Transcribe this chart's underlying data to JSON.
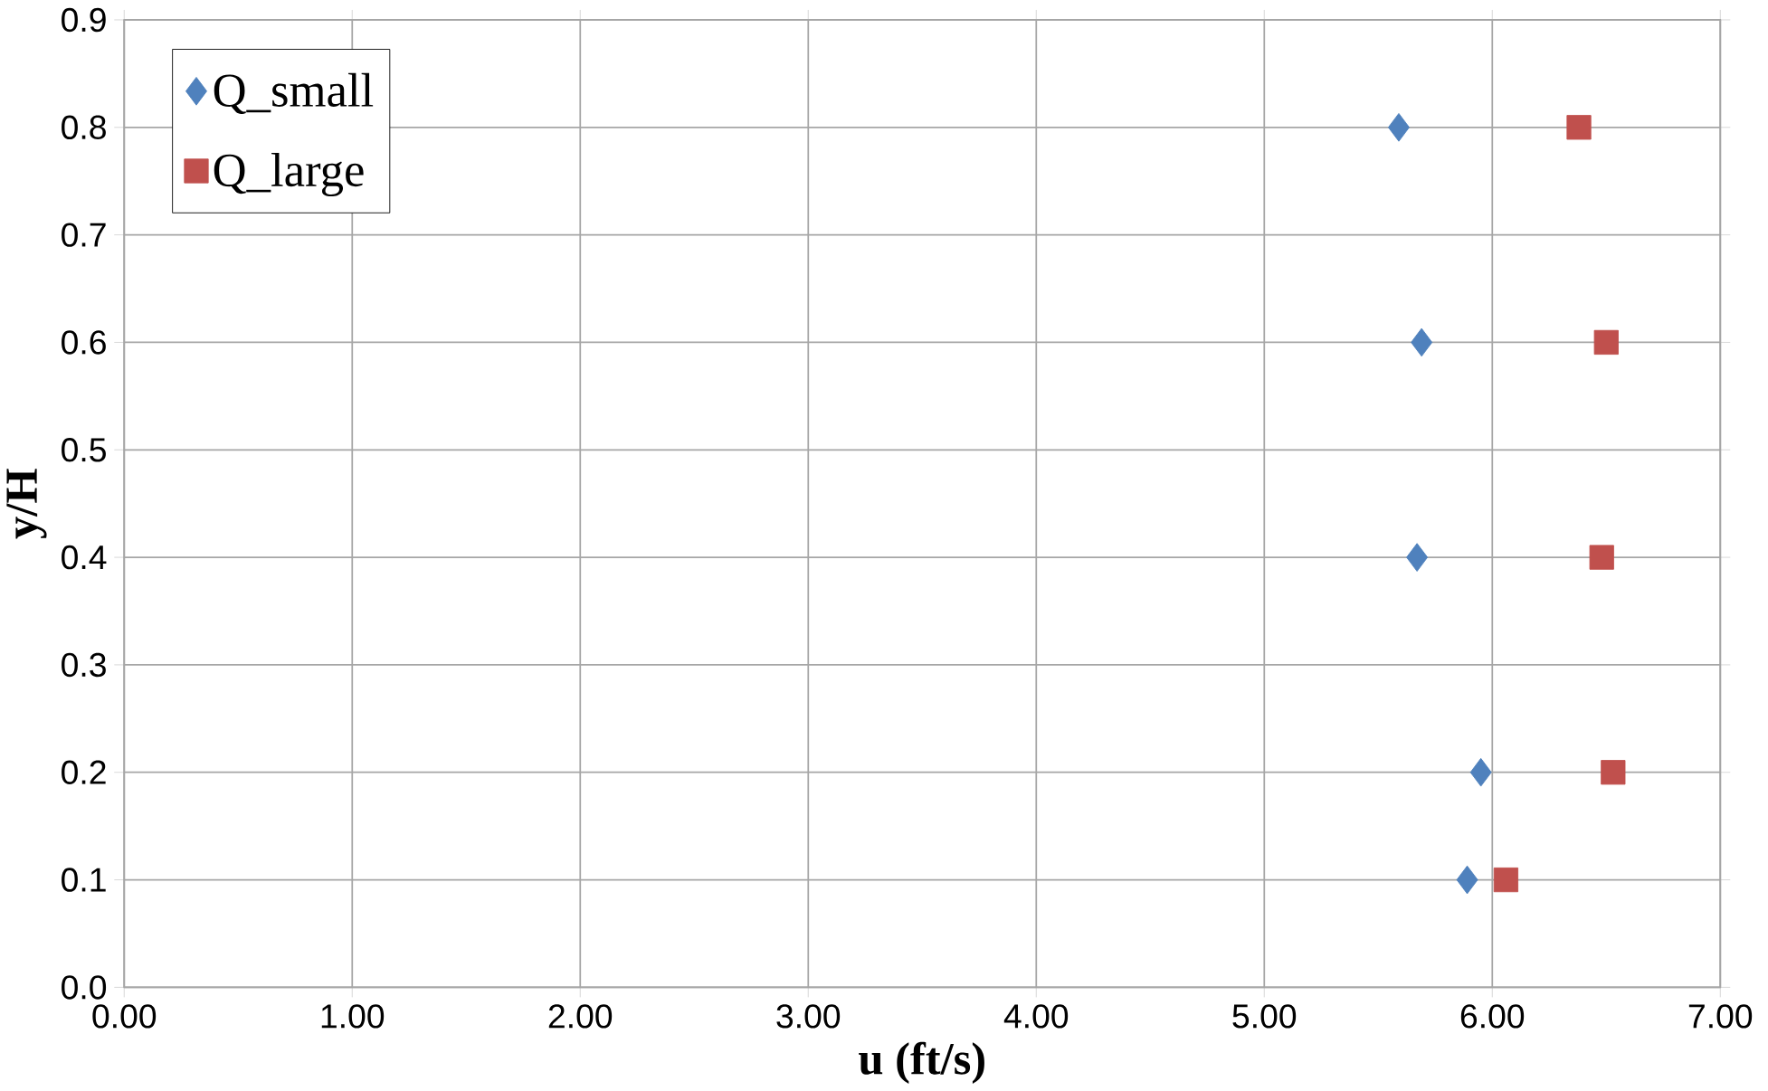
{
  "chart_data": {
    "type": "scatter",
    "xlabel": "u (ft/s)",
    "ylabel": "y/H",
    "series": [
      {
        "name": "Q_small",
        "color": "#4f81bd",
        "marker": "diamond",
        "x": [
          5.59,
          5.69,
          5.67,
          5.95,
          5.89
        ],
        "values": [
          0.8,
          0.6,
          0.4,
          0.2,
          0.1
        ]
      },
      {
        "name": "Q_large",
        "color": "#c0504d",
        "marker": "square",
        "x": [
          6.38,
          6.5,
          6.48,
          6.53,
          6.06
        ],
        "values": [
          0.8,
          0.6,
          0.4,
          0.2,
          0.1
        ]
      }
    ],
    "xlim": [
      0,
      7
    ],
    "ylim": [
      0,
      0.9
    ],
    "xticks": [
      {
        "value": 0,
        "label": "0.00"
      },
      {
        "value": 1,
        "label": "1.00"
      },
      {
        "value": 2,
        "label": "2.00"
      },
      {
        "value": 3,
        "label": "3.00"
      },
      {
        "value": 4,
        "label": "4.00"
      },
      {
        "value": 5,
        "label": "5.00"
      },
      {
        "value": 6,
        "label": "6.00"
      },
      {
        "value": 7,
        "label": "7.00"
      }
    ],
    "yticks": [
      {
        "value": 0,
        "label": "0.0"
      },
      {
        "value": 0.1,
        "label": "0.1"
      },
      {
        "value": 0.2,
        "label": "0.2"
      },
      {
        "value": 0.3,
        "label": "0.3"
      },
      {
        "value": 0.4,
        "label": "0.4"
      },
      {
        "value": 0.5,
        "label": "0.5"
      },
      {
        "value": 0.6,
        "label": "0.6"
      },
      {
        "value": 0.7,
        "label": "0.7"
      },
      {
        "value": 0.8,
        "label": "0.8"
      },
      {
        "value": 0.9,
        "label": "0.9"
      }
    ],
    "grid": true,
    "legend": "top left"
  }
}
